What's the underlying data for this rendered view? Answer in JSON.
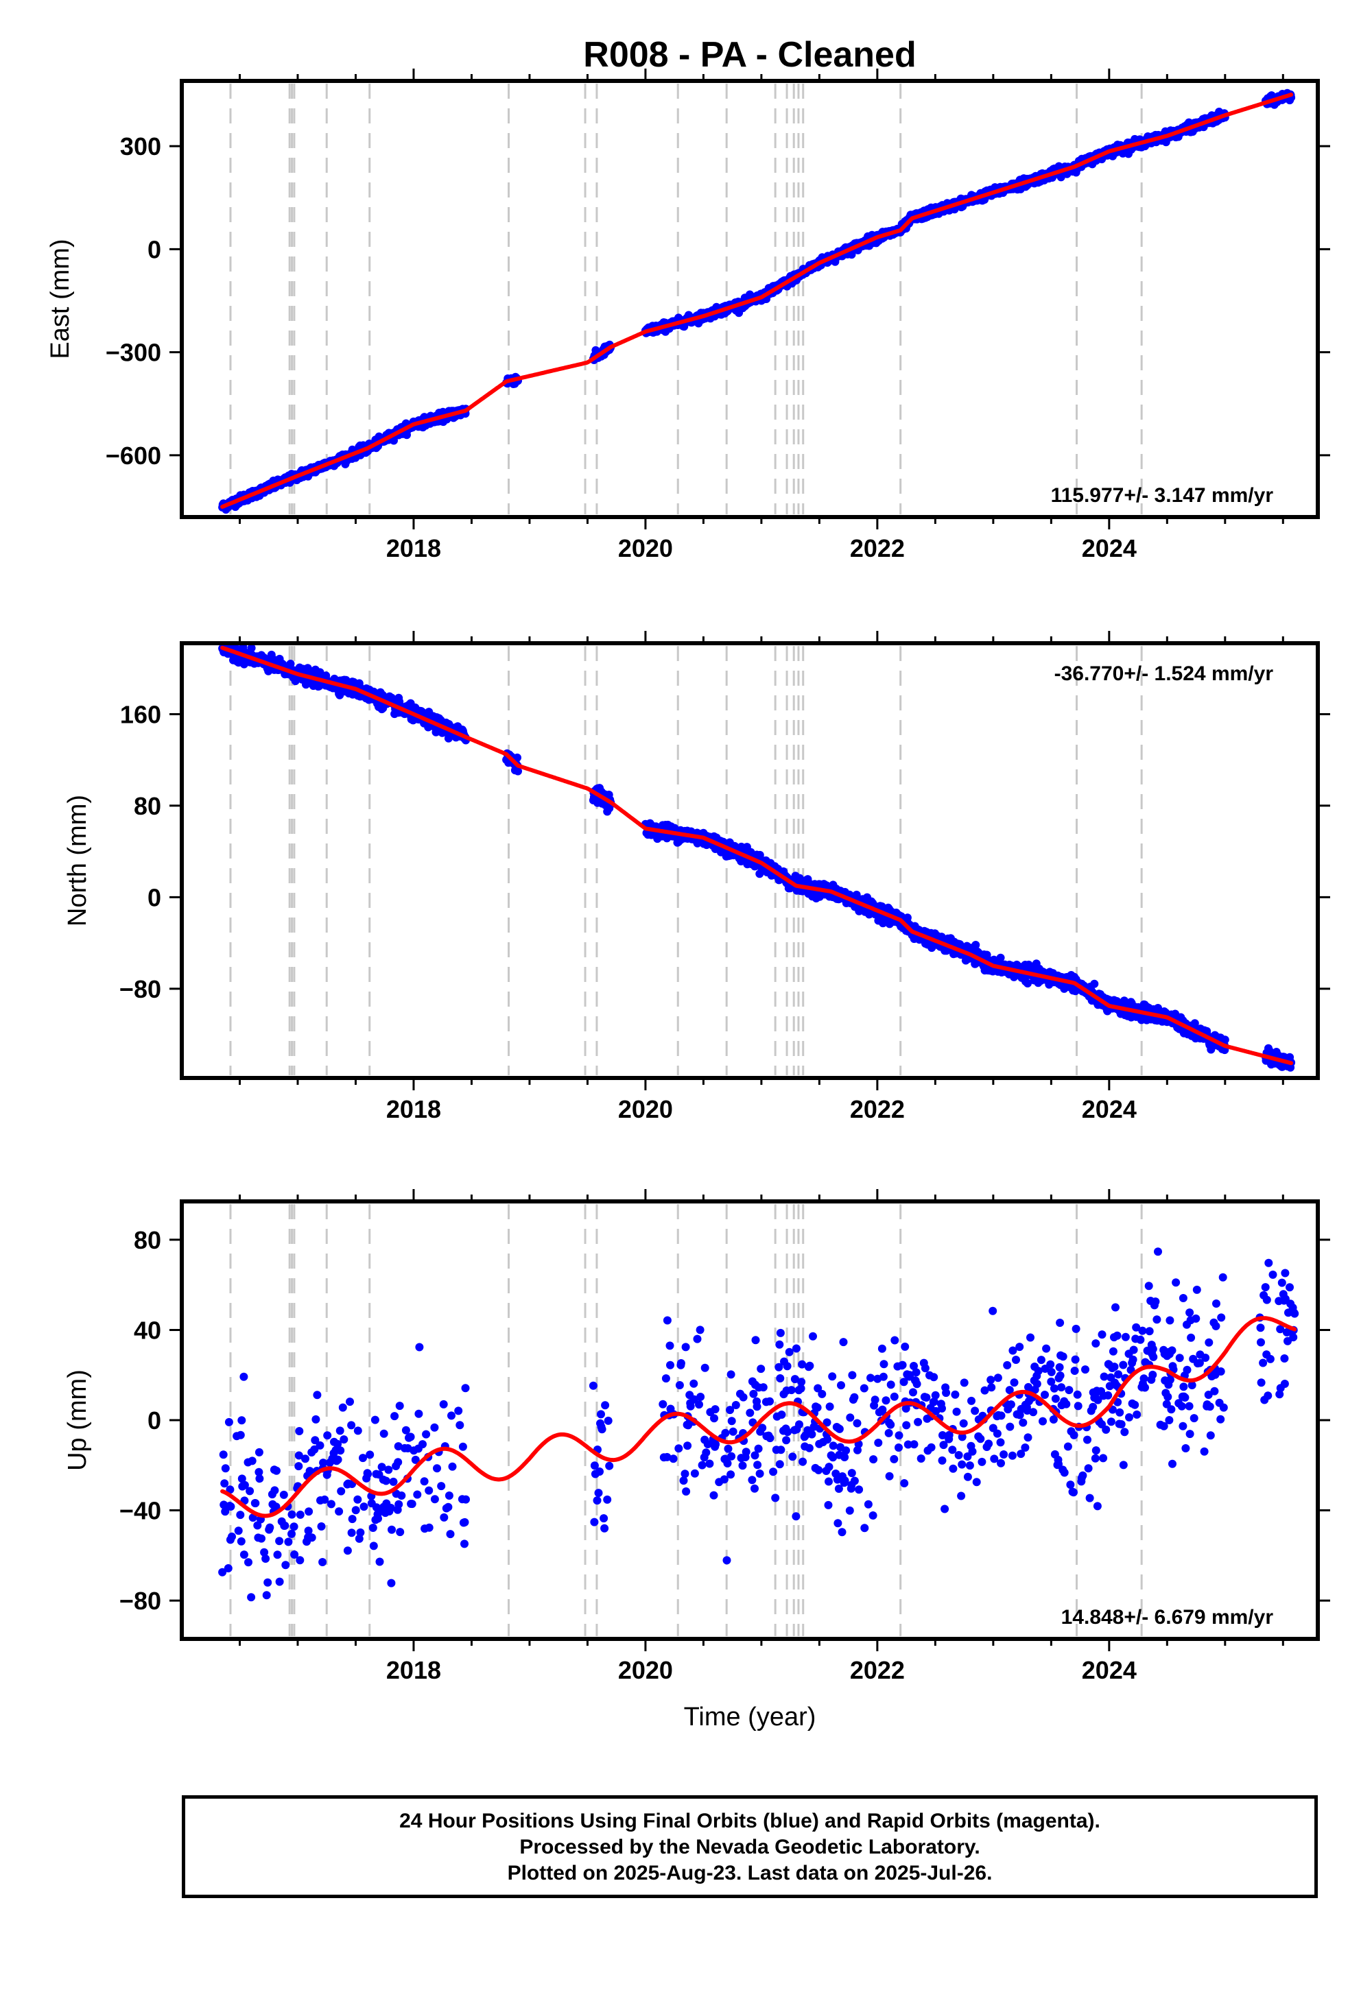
{
  "chart_data": [
    {
      "type": "scatter",
      "title": "R008  - PA - Cleaned",
      "xlabel": "",
      "ylabel": "East (mm)",
      "xlim": [
        2016.0,
        2025.8
      ],
      "ylim": [
        -780,
        490
      ],
      "xticks": [
        2018,
        2020,
        2022,
        2024
      ],
      "yticks": [
        -600,
        -300,
        0,
        300
      ],
      "grid": false,
      "rate_annotation": "115.977+/- 3.147 mm/yr",
      "annotation_position": "bottom-right",
      "series": [
        {
          "marker_color": "#0000ff",
          "style": "points",
          "noise": 6,
          "segments": [
            [
              2016.35,
              2018.45
            ],
            [
              2018.8,
              2018.9
            ],
            [
              2019.55,
              2019.7
            ],
            [
              2020.0,
              2025.0
            ],
            [
              2025.35,
              2025.57
            ]
          ],
          "x": [
            2016.35,
            2017.0,
            2017.6,
            2018.0,
            2018.45,
            2018.8,
            2019.5,
            2019.7,
            2020.0,
            2020.5,
            2021.0,
            2021.3,
            2021.5,
            2022.0,
            2022.2,
            2022.3,
            2023.0,
            2023.7,
            2024.0,
            2024.5,
            2025.0,
            2025.57
          ],
          "y": [
            -750,
            -660,
            -580,
            -510,
            -470,
            -385,
            -330,
            -285,
            -240,
            -195,
            -140,
            -80,
            -40,
            35,
            55,
            90,
            165,
            240,
            285,
            330,
            390,
            450
          ]
        },
        {
          "marker_color": "#ff0000",
          "style": "line",
          "x": [
            2016.35,
            2017.0,
            2017.6,
            2018.0,
            2018.45,
            2018.8,
            2019.5,
            2019.7,
            2020.0,
            2020.5,
            2021.0,
            2021.3,
            2021.5,
            2022.0,
            2022.2,
            2022.3,
            2023.0,
            2023.7,
            2024.0,
            2024.5,
            2025.0,
            2025.57
          ],
          "y": [
            -750,
            -660,
            -580,
            -510,
            -470,
            -385,
            -330,
            -285,
            -240,
            -195,
            -140,
            -80,
            -40,
            35,
            55,
            90,
            165,
            240,
            285,
            330,
            390,
            450
          ]
        }
      ]
    },
    {
      "type": "scatter",
      "title": "",
      "xlabel": "",
      "ylabel": "North (mm)",
      "xlim": [
        2016.0,
        2025.8
      ],
      "ylim": [
        -158,
        222
      ],
      "xticks": [
        2018,
        2020,
        2022,
        2024
      ],
      "yticks": [
        -80,
        0,
        80,
        160
      ],
      "grid": false,
      "rate_annotation": "-36.770+/- 1.524 mm/yr",
      "annotation_position": "top-right",
      "series": [
        {
          "marker_color": "#0000ff",
          "style": "points",
          "noise": 3,
          "segments": [
            [
              2016.35,
              2018.45
            ],
            [
              2018.8,
              2018.9
            ],
            [
              2019.55,
              2019.7
            ],
            [
              2020.0,
              2025.0
            ],
            [
              2025.35,
              2025.57
            ]
          ],
          "x": [
            2016.35,
            2017.0,
            2017.5,
            2018.0,
            2018.45,
            2018.8,
            2018.9,
            2019.5,
            2019.7,
            2020.0,
            2020.5,
            2021.0,
            2021.3,
            2021.6,
            2022.2,
            2022.3,
            2022.8,
            2023.0,
            2023.7,
            2024.0,
            2024.5,
            2025.0,
            2025.57
          ],
          "y": [
            218,
            195,
            182,
            160,
            140,
            125,
            115,
            95,
            83,
            60,
            52,
            30,
            10,
            5,
            -20,
            -30,
            -50,
            -60,
            -75,
            -95,
            -105,
            -130,
            -145
          ]
        },
        {
          "marker_color": "#ff0000",
          "style": "line",
          "x": [
            2016.35,
            2017.0,
            2017.5,
            2018.0,
            2018.45,
            2018.8,
            2018.9,
            2019.5,
            2019.7,
            2020.0,
            2020.5,
            2021.0,
            2021.3,
            2021.6,
            2022.2,
            2022.3,
            2022.8,
            2023.0,
            2023.7,
            2024.0,
            2024.5,
            2025.0,
            2025.57
          ],
          "y": [
            218,
            195,
            182,
            160,
            140,
            125,
            115,
            95,
            83,
            60,
            52,
            30,
            10,
            5,
            -20,
            -30,
            -50,
            -60,
            -75,
            -95,
            -105,
            -130,
            -145
          ]
        }
      ]
    },
    {
      "type": "scatter",
      "title": "",
      "xlabel": "Time (year)",
      "ylabel": "Up (mm)",
      "xlim": [
        2016.0,
        2025.8
      ],
      "ylim": [
        -97,
        97
      ],
      "xticks": [
        2018,
        2020,
        2022,
        2024
      ],
      "yticks": [
        -80,
        -40,
        0,
        40,
        80
      ],
      "grid": false,
      "rate_annotation": "14.848+/- 6.679 mm/yr",
      "annotation_position": "bottom-right",
      "series": [
        {
          "marker_color": "#0000ff",
          "style": "points",
          "noise": 18,
          "segments": [
            [
              2016.35,
              2018.45
            ],
            [
              2019.55,
              2019.7
            ],
            [
              2020.15,
              2025.0
            ],
            [
              2025.3,
              2025.6
            ]
          ],
          "x": [
            2016.35,
            2017.0,
            2018.0,
            2019.0,
            2020.0,
            2021.0,
            2022.0,
            2023.0,
            2024.0,
            2024.5,
            2025.0,
            2025.6
          ],
          "y": [
            -38,
            -32,
            -22,
            -17,
            -7,
            0,
            -2,
            4,
            6,
            22,
            30,
            45
          ]
        },
        {
          "marker_color": "#ff0000",
          "style": "line",
          "x": [
            2016.35,
            2017.0,
            2018.0,
            2019.0,
            2020.0,
            2021.0,
            2022.0,
            2023.0,
            2024.0,
            2024.5,
            2025.0,
            2025.6
          ],
          "y": [
            -38,
            -32,
            -22,
            -17,
            -7,
            0,
            -2,
            4,
            6,
            22,
            30,
            45
          ]
        }
      ]
    }
  ],
  "event_lines": [
    2016.42,
    2016.93,
    2016.95,
    2016.97,
    2017.25,
    2017.62,
    2018.82,
    2019.48,
    2019.58,
    2020.28,
    2020.7,
    2021.12,
    2021.22,
    2021.28,
    2021.32,
    2021.36,
    2022.2,
    2023.72,
    2024.28
  ],
  "colors": {
    "data": "#0000ff",
    "model": "#ff0000",
    "event_line": "#c8c8c8"
  },
  "footer": {
    "line1": "24 Hour Positions Using Final Orbits (blue) and Rapid Orbits (magenta).",
    "line2": "Processed by the Nevada Geodetic Laboratory.",
    "line3": "Plotted on 2025-Aug-23. Last data on 2025-Jul-26."
  }
}
